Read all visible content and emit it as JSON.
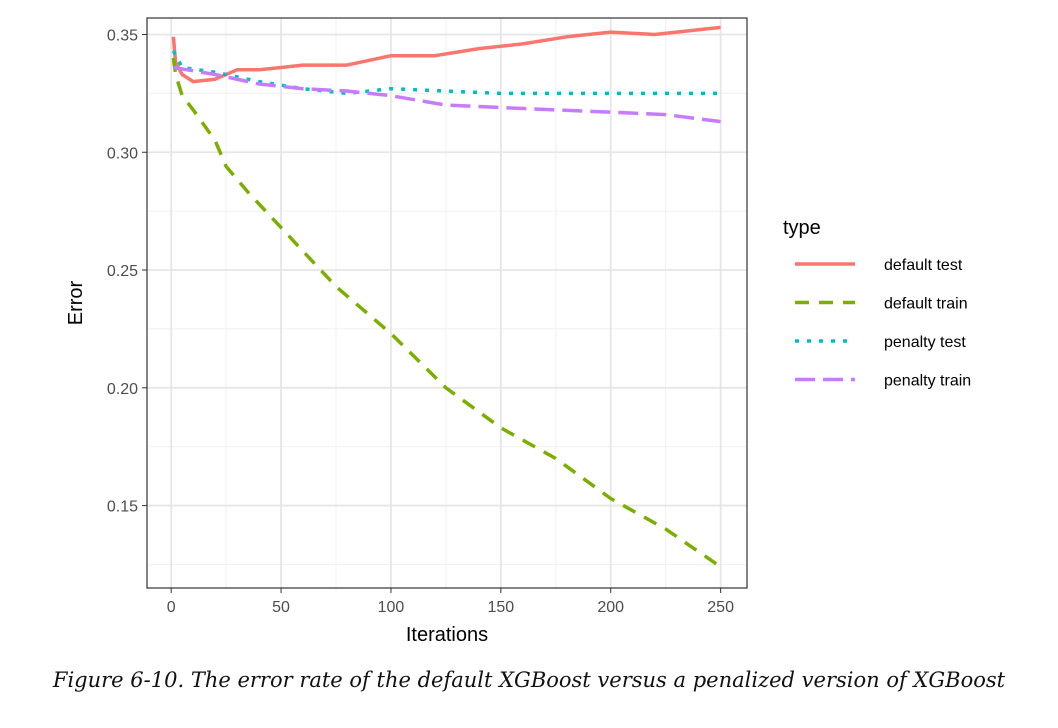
{
  "chart_data": {
    "type": "line",
    "title": "",
    "xlabel": "Iterations",
    "ylabel": "Error",
    "xlim": [
      -11,
      262
    ],
    "ylim": [
      0.115,
      0.357
    ],
    "xticks": [
      0,
      50,
      100,
      150,
      200,
      250
    ],
    "yticks": [
      0.15,
      0.2,
      0.25,
      0.3,
      0.35
    ],
    "ytick_labels": [
      "0.15",
      "0.20",
      "0.25",
      "0.30",
      "0.35"
    ],
    "grid": true,
    "legend_title": "type",
    "legend_position": "right",
    "series": [
      {
        "name": "default test",
        "color": "#F8766D",
        "dash": "solid",
        "x": [
          1,
          2,
          5,
          10,
          20,
          30,
          40,
          50,
          60,
          80,
          100,
          120,
          140,
          160,
          180,
          200,
          220,
          240,
          250
        ],
        "y": [
          0.349,
          0.338,
          0.333,
          0.33,
          0.331,
          0.335,
          0.335,
          0.336,
          0.337,
          0.337,
          0.341,
          0.341,
          0.344,
          0.346,
          0.349,
          0.351,
          0.35,
          0.352,
          0.353
        ]
      },
      {
        "name": "default train",
        "color": "#7CAE00",
        "dash": "dashed",
        "x": [
          1,
          2,
          5,
          10,
          20,
          25,
          35,
          50,
          60,
          75,
          100,
          125,
          150,
          175,
          200,
          225,
          250
        ],
        "y": [
          0.34,
          0.333,
          0.324,
          0.318,
          0.305,
          0.294,
          0.283,
          0.268,
          0.258,
          0.243,
          0.223,
          0.2,
          0.183,
          0.17,
          0.153,
          0.14,
          0.124
        ]
      },
      {
        "name": "penalty test",
        "color": "#00BFC4",
        "dash": "dotted",
        "x": [
          1,
          5,
          20,
          40,
          60,
          80,
          100,
          150,
          200,
          250
        ],
        "y": [
          0.343,
          0.336,
          0.334,
          0.33,
          0.327,
          0.325,
          0.327,
          0.325,
          0.325,
          0.325
        ]
      },
      {
        "name": "penalty train",
        "color": "#C77CFF",
        "dash": "longdash",
        "x": [
          1,
          20,
          40,
          60,
          80,
          100,
          125,
          150,
          175,
          200,
          225,
          250
        ],
        "y": [
          0.336,
          0.333,
          0.329,
          0.327,
          0.326,
          0.324,
          0.32,
          0.319,
          0.318,
          0.317,
          0.316,
          0.313
        ]
      }
    ]
  },
  "caption": "Figure 6-10. The error rate of the default XGBoost versus a penalized version of XGBoost"
}
